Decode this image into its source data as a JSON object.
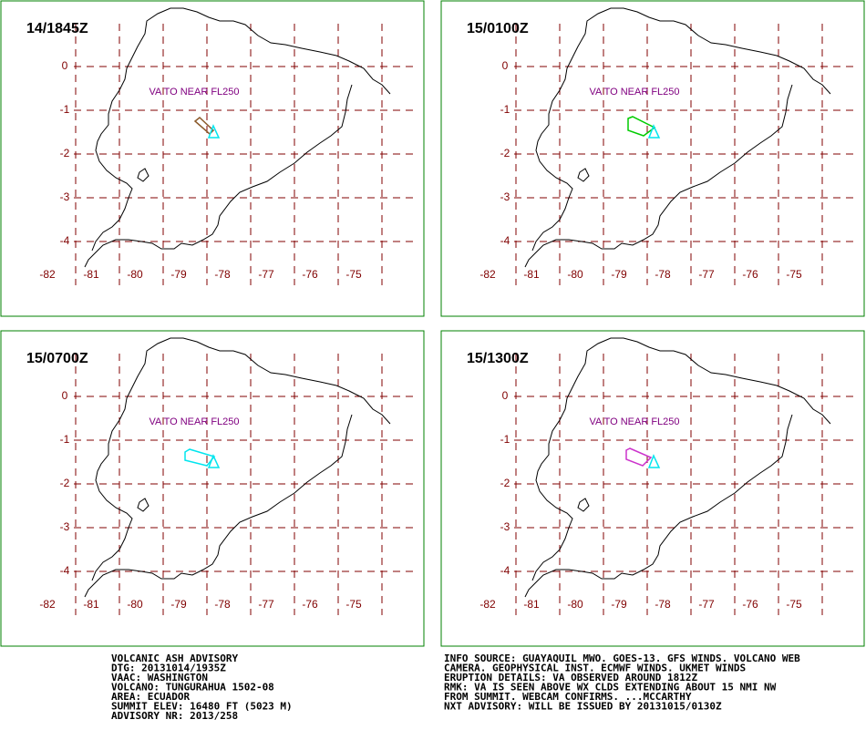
{
  "panels": [
    {
      "time": "14/1845Z",
      "annotation": "VA TO NEAR FL250",
      "ash_color": "#8b5a2b"
    },
    {
      "time": "15/0100Z",
      "annotation": "VA TO NEAR FL250",
      "ash_color": "#00cc00"
    },
    {
      "time": "15/0700Z",
      "annotation": "VA TO NEAR FL250",
      "ash_color": "#00e5ee"
    },
    {
      "time": "15/1300Z",
      "annotation": "VA TO NEAR FL250",
      "ash_color": "#cc33cc"
    }
  ],
  "observed_color": "#00e5ee",
  "lat_labels": [
    0,
    -1,
    -2,
    -3,
    -4
  ],
  "lon_labels": [
    -82,
    -81,
    -80,
    -79,
    -78,
    -77,
    -76,
    -75
  ],
  "advisory_left": [
    "VOLCANIC ASH ADVISORY",
    "DTG: 20131014/1935Z",
    "VAAC: WASHINGTON",
    "VOLCANO: TUNGURAHUA 1502-08",
    "AREA: ECUADOR",
    "SUMMIT ELEV: 16480 FT (5023 M)",
    "ADVISORY NR: 2013/258"
  ],
  "advisory_right": [
    "INFO SOURCE: GUAYAQUIL MWO. GOES-13. GFS WINDS. VOLCANO WEB",
    "CAMERA. GEOPHYSICAL INST. ECMWF WINDS. UKMET WINDS",
    "ERUPTION DETAILS: VA OBSERVED AROUND 1812Z",
    "RMK: VA IS SEEN ABOVE WX CLDS EXTENDING ABOUT 15 NMI NW",
    "FROM SUMMIT. WEBCAM CONFIRMS. ...MCCARTHY",
    "NXT ADVISORY: WILL BE ISSUED BY 20131015/0130Z"
  ]
}
